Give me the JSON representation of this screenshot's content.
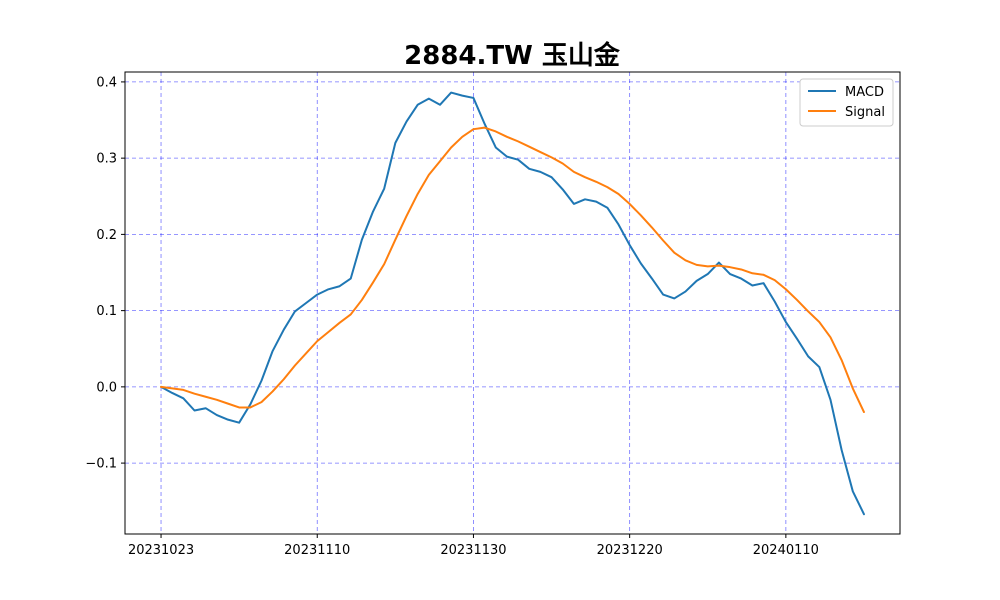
{
  "chart_data": {
    "type": "line",
    "title": "2884.TW 玉山金",
    "xlabel": "",
    "ylabel": "",
    "grid": true,
    "grid_color": "#0000ff",
    "legend_position": "top-right",
    "ylim": [
      -0.193,
      0.413
    ],
    "y_ticks": [
      {
        "value": 0.4,
        "label": "0.4"
      },
      {
        "value": 0.3,
        "label": "0.3"
      },
      {
        "value": 0.2,
        "label": "0.2"
      },
      {
        "value": 0.1,
        "label": "0.1"
      },
      {
        "value": 0.0,
        "label": "0.0"
      },
      {
        "value": -0.1,
        "label": "−0.1"
      }
    ],
    "x_ticks": [
      {
        "index": 0,
        "label": "20231023"
      },
      {
        "index": 14,
        "label": "20231110"
      },
      {
        "index": 28,
        "label": "20231130"
      },
      {
        "index": 42,
        "label": "20231220"
      },
      {
        "index": 56,
        "label": "20240110"
      }
    ],
    "xlim_index": [
      -3.23,
      66.23
    ],
    "series": [
      {
        "name": "MACD",
        "color": "#1f77b4",
        "values": [
          0.0,
          -0.008,
          -0.015,
          -0.031,
          -0.028,
          -0.037,
          -0.043,
          -0.047,
          -0.023,
          0.008,
          0.047,
          0.075,
          0.099,
          0.11,
          0.121,
          0.128,
          0.132,
          0.142,
          0.193,
          0.23,
          0.26,
          0.32,
          0.348,
          0.37,
          0.378,
          0.37,
          0.386,
          0.382,
          0.379,
          0.345,
          0.314,
          0.302,
          0.298,
          0.286,
          0.282,
          0.275,
          0.259,
          0.24,
          0.246,
          0.243,
          0.235,
          0.213,
          0.186,
          0.162,
          0.142,
          0.121,
          0.116,
          0.125,
          0.139,
          0.148,
          0.163,
          0.148,
          0.142,
          0.133,
          0.136,
          0.112,
          0.085,
          0.063,
          0.04,
          0.026,
          -0.017,
          -0.083,
          -0.137,
          -0.167
        ]
      },
      {
        "name": "Signal",
        "color": "#ff7f0e",
        "values": [
          0.0,
          -0.002,
          -0.004,
          -0.009,
          -0.013,
          -0.017,
          -0.022,
          -0.027,
          -0.027,
          -0.02,
          -0.006,
          0.01,
          0.028,
          0.044,
          0.06,
          0.072,
          0.084,
          0.095,
          0.114,
          0.137,
          0.161,
          0.193,
          0.224,
          0.253,
          0.278,
          0.296,
          0.314,
          0.328,
          0.338,
          0.34,
          0.335,
          0.328,
          0.322,
          0.315,
          0.308,
          0.301,
          0.293,
          0.282,
          0.275,
          0.269,
          0.262,
          0.253,
          0.24,
          0.225,
          0.209,
          0.192,
          0.176,
          0.166,
          0.16,
          0.158,
          0.159,
          0.157,
          0.154,
          0.149,
          0.147,
          0.14,
          0.128,
          0.114,
          0.099,
          0.085,
          0.065,
          0.035,
          -0.002,
          -0.033
        ]
      }
    ]
  }
}
